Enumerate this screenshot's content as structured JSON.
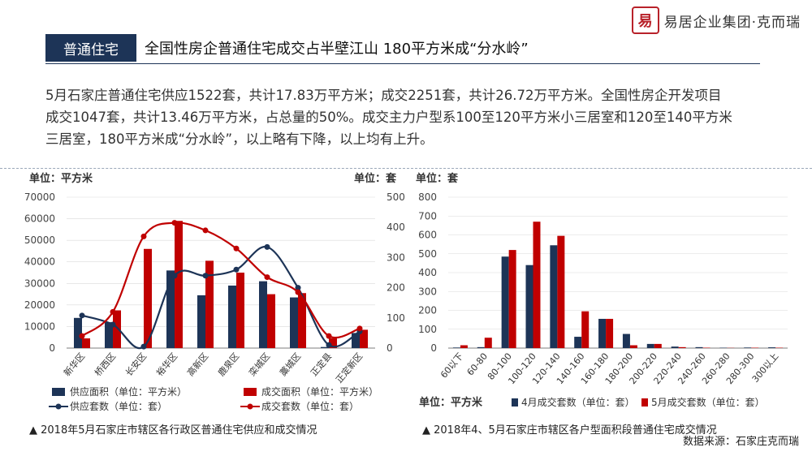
{
  "brand": {
    "logo_glyph": "易",
    "name": "易居企业集团·克而瑞"
  },
  "header": {
    "tag": "普通住宅",
    "title": "全国性房企普通住宅成交占半壁江山 180平方米成“分水岭”"
  },
  "summary": [
    "5月石家庄普通住宅供应1522套，共计17.83万平方米；成交2251套，共计26.72万平方米。全国性房企开发项目",
    "成交1047套，共计13.46万平方米，占总量的50%。成交主力户型系100至120平方米小三居室和120至140平方米",
    "三居室，180平方米成“分水岭”，以上略有下降，以上均有上升。"
  ],
  "colors": {
    "navy": "#1d3457",
    "red": "#c00000",
    "grid": "#d9d9d9",
    "axis": "#595959"
  },
  "chart_data": [
    {
      "type": "bar",
      "caption": "▲ 2018年5月石家庄市辖区各行政区普通住宅供应和成交情况",
      "left_unit": "单位：平方米",
      "right_unit": "单位：套",
      "categories": [
        "新华区",
        "桥西区",
        "长安区",
        "裕华区",
        "高新区",
        "鹿泉区",
        "栾城区",
        "藁城区",
        "正定县",
        "正定新区"
      ],
      "ylim": [
        0,
        70000
      ],
      "yticks": [
        "0",
        "10000",
        "20000",
        "30000",
        "40000",
        "50000",
        "60000",
        "70000"
      ],
      "y2lim": [
        0,
        500
      ],
      "y2ticks": [
        "0",
        "100",
        "200",
        "300",
        "400",
        "500"
      ],
      "series": [
        {
          "name": "供应面积（单位：平方米）",
          "kind": "bar",
          "axis": "left",
          "color": "#1d3457",
          "values": [
            14000,
            12000,
            0,
            36000,
            24500,
            29000,
            31000,
            23500,
            500,
            7000
          ]
        },
        {
          "name": "成交面积（单位：平方米）",
          "kind": "bar",
          "axis": "left",
          "color": "#c00000",
          "values": [
            4500,
            17500,
            46000,
            59000,
            40500,
            35000,
            25000,
            25500,
            4500,
            8500
          ]
        },
        {
          "name": "供应套数（单位：套）",
          "kind": "line",
          "axis": "right",
          "color": "#1d3457",
          "values": [
            108,
            78,
            5,
            240,
            240,
            260,
            335,
            200,
            10,
            55
          ]
        },
        {
          "name": "成交套数（单位：套）",
          "kind": "line",
          "axis": "right",
          "color": "#c00000",
          "values": [
            40,
            120,
            370,
            415,
            390,
            330,
            235,
            185,
            40,
            65
          ]
        }
      ]
    },
    {
      "type": "bar",
      "caption": "▲ 2018年4、5月石家庄市辖区各户型面积段普通住宅成交情况",
      "left_unit": "单位：套",
      "bottom_unit": "单位：平方米",
      "categories": [
        "60以下",
        "60-80",
        "80-100",
        "100-120",
        "120-140",
        "140-160",
        "160-180",
        "180-200",
        "200-220",
        "220-240",
        "240-260",
        "260-280",
        "280-300",
        "300以上"
      ],
      "ylim": [
        0,
        800
      ],
      "yticks": [
        "0",
        "100",
        "200",
        "300",
        "400",
        "500",
        "600",
        "700",
        "800"
      ],
      "series": [
        {
          "name": "4月成交套数（单位：套）",
          "color": "#1d3457",
          "values": [
            3,
            5,
            485,
            440,
            545,
            60,
            155,
            75,
            22,
            8,
            5,
            2,
            3,
            4
          ]
        },
        {
          "name": "5月成交套数（单位：套）",
          "color": "#c00000",
          "values": [
            15,
            55,
            520,
            670,
            595,
            195,
            155,
            15,
            22,
            5,
            2,
            1,
            2,
            2
          ]
        }
      ]
    }
  ],
  "source": "数据来源：石家庄克而瑞"
}
